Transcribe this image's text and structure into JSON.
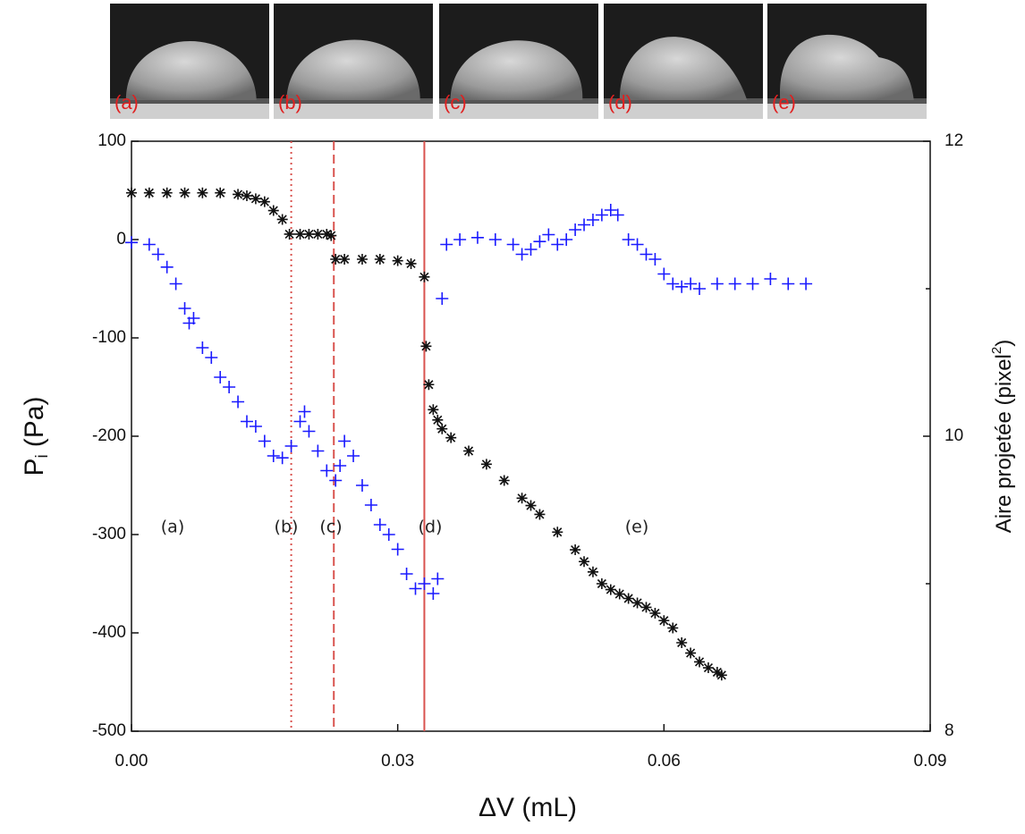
{
  "chart_data": {
    "type": "scatter",
    "photo_labels": [
      "(a)",
      "(b)",
      "(c)",
      "(d)",
      "(e)"
    ],
    "xlabel": "ΔV (mL)",
    "ylabel": {
      "main": "P",
      "sub": "i",
      "unit": "(Pa)"
    },
    "y2label": {
      "main": "Aire projetée (pixel",
      "sup": "2",
      "end": ")"
    },
    "xlim": [
      0,
      0.09
    ],
    "xticks": [
      {
        "value": 0,
        "label": "0.00"
      },
      0.03,
      0.06,
      0.09
    ],
    "ylim": [
      -500,
      100
    ],
    "yticks": [
      -500,
      -400,
      -300,
      -200,
      -100,
      0,
      100
    ],
    "y2lim": [
      8,
      12
    ],
    "y2ticks": [
      8,
      10,
      12
    ],
    "y2minor_ticks": [
      9,
      11
    ],
    "vlines": [
      {
        "x": 0.018,
        "style": "dotted",
        "color": "#d9534f"
      },
      {
        "x": 0.0228,
        "style": "dashed",
        "color": "#d9534f"
      },
      {
        "x": 0.033,
        "style": "solid",
        "color": "#d9534f"
      }
    ],
    "annotations": [
      "(a)",
      "(b)",
      "(c)",
      "(d)",
      "(e)"
    ],
    "series": [
      {
        "color": "#1a1aff",
        "marker": "plus",
        "x": [
          0,
          0.002,
          0.003,
          0.004,
          0.005,
          0.006,
          0.0065,
          0.007,
          0.008,
          0.009,
          0.01,
          0.011,
          0.012,
          0.013,
          0.014,
          0.015,
          0.016,
          0.017,
          0.018,
          0.019,
          0.0195,
          0.02,
          0.021,
          0.022,
          0.023,
          0.0235,
          0.024,
          0.025,
          0.026,
          0.027,
          0.028,
          0.029,
          0.03,
          0.031,
          0.032,
          0.033,
          0.034,
          0.0345,
          0.035,
          0.0355,
          0.037,
          0.039,
          0.041,
          0.043,
          0.044,
          0.045,
          0.046,
          0.047,
          0.048,
          0.049,
          0.05,
          0.051,
          0.052,
          0.053,
          0.054,
          0.0548,
          0.056,
          0.057,
          0.058,
          0.059,
          0.06,
          0.061,
          0.062,
          0.063,
          0.064,
          0.066,
          0.068,
          0.07,
          0.072,
          0.074,
          0.076
        ],
        "values": [
          -3,
          -5,
          -15,
          -28,
          -45,
          -70,
          -85,
          -80,
          -110,
          -120,
          -140,
          -150,
          -165,
          -185,
          -190,
          -205,
          -220,
          -222,
          -210,
          -185,
          -175,
          -195,
          -215,
          -235,
          -245,
          -230,
          -205,
          -220,
          -250,
          -270,
          -290,
          -300,
          -315,
          -340,
          -355,
          -350,
          -360,
          -345,
          -60,
          -5,
          0,
          2,
          0,
          -5,
          -15,
          -10,
          -2,
          5,
          -5,
          0,
          10,
          15,
          20,
          25,
          30,
          25,
          0,
          -5,
          -15,
          -20,
          -35,
          -45,
          -48,
          -45,
          -50,
          -45,
          -45,
          -45,
          -40,
          -45,
          -45
        ]
      },
      {
        "color": "#111111",
        "marker": "star",
        "axis": "y2",
        "x": [
          0,
          0.002,
          0.004,
          0.006,
          0.008,
          0.01,
          0.012,
          0.013,
          0.014,
          0.015,
          0.016,
          0.017,
          0.0178,
          0.019,
          0.02,
          0.021,
          0.022,
          0.0225,
          0.023,
          0.024,
          0.026,
          0.028,
          0.03,
          0.0315,
          0.033,
          0.0332,
          0.0335,
          0.034,
          0.0345,
          0.035,
          0.036,
          0.038,
          0.04,
          0.042,
          0.044,
          0.045,
          0.046,
          0.048,
          0.05,
          0.051,
          0.052,
          0.053,
          0.054,
          0.055,
          0.056,
          0.057,
          0.058,
          0.059,
          0.06,
          0.061,
          0.062,
          0.063,
          0.064,
          0.065,
          0.066,
          0.0665
        ],
        "values": [
          11.65,
          11.65,
          11.65,
          11.65,
          11.65,
          11.65,
          11.64,
          11.63,
          11.61,
          11.59,
          11.53,
          11.47,
          11.37,
          11.37,
          11.37,
          11.37,
          11.37,
          11.36,
          11.2,
          11.2,
          11.2,
          11.2,
          11.19,
          11.17,
          11.08,
          10.61,
          10.35,
          10.18,
          10.11,
          10.05,
          9.99,
          9.9,
          9.81,
          9.7,
          9.58,
          9.53,
          9.47,
          9.35,
          9.23,
          9.15,
          9.08,
          9.0,
          8.96,
          8.93,
          8.9,
          8.87,
          8.84,
          8.8,
          8.75,
          8.7,
          8.6,
          8.53,
          8.47,
          8.43,
          8.4,
          8.38
        ]
      }
    ]
  }
}
